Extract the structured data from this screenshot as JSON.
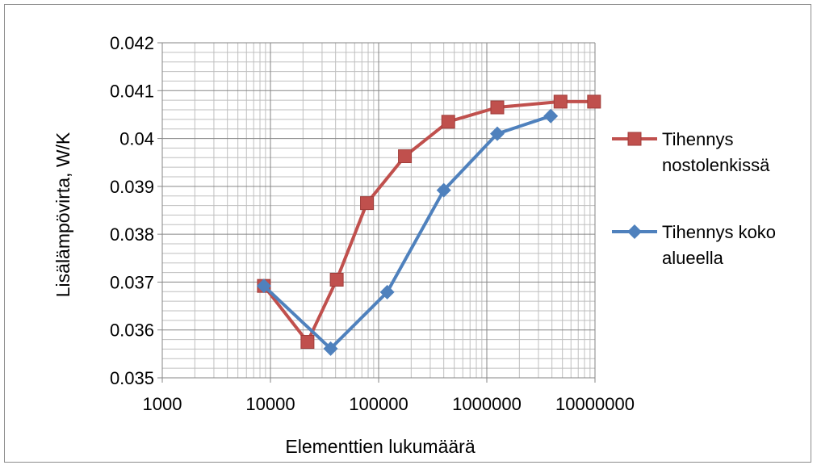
{
  "chart_data": {
    "type": "line",
    "x_scale": "log",
    "xlabel": "Elementtien lukumäärä",
    "ylabel": "Lisälämpövirta, W/K",
    "xlim": [
      1000,
      10000000
    ],
    "ylim": [
      0.035,
      0.042
    ],
    "x_ticks": [
      "1000",
      "10000",
      "100000",
      "1000000",
      "10000000"
    ],
    "y_ticks": [
      "0.035",
      "0.036",
      "0.037",
      "0.038",
      "0.039",
      "0.04",
      "0.041",
      "0.042"
    ],
    "grid": true,
    "legend_position": "right",
    "series": [
      {
        "name_lines": [
          "Tihennys",
          "nostolenkissä"
        ],
        "color": "#C0504D",
        "marker": "square",
        "points": [
          [
            8700,
            0.03692
          ],
          [
            22000,
            0.03575
          ],
          [
            41000,
            0.03705
          ],
          [
            78000,
            0.03865
          ],
          [
            175000,
            0.03963
          ],
          [
            440000,
            0.04035
          ],
          [
            1250000,
            0.04065
          ],
          [
            4800000,
            0.04077
          ],
          [
            9800000,
            0.04077
          ]
        ]
      },
      {
        "name_lines": [
          "Tihennys koko",
          "alueella"
        ],
        "color": "#4F81BD",
        "marker": "diamond",
        "points": [
          [
            8700,
            0.03692
          ],
          [
            36000,
            0.03561
          ],
          [
            120000,
            0.03679
          ],
          [
            400000,
            0.03892
          ],
          [
            1250000,
            0.0401
          ],
          [
            3900000,
            0.04047
          ]
        ]
      }
    ]
  }
}
